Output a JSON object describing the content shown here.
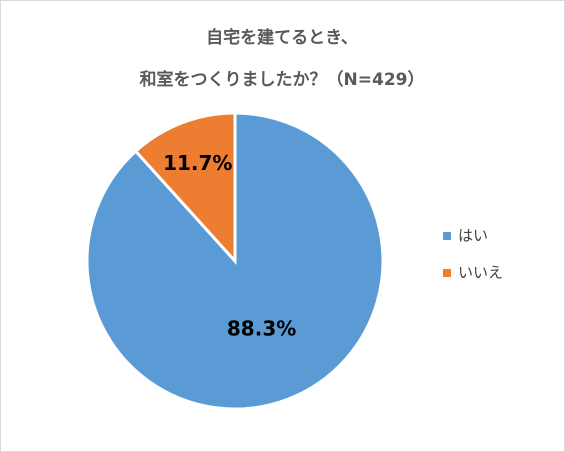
{
  "chart_data": {
    "type": "pie",
    "title": [
      "自宅を建てるとき、",
      "和室をつくりましたか？（N=429）"
    ],
    "categories": [
      "はい",
      "いいえ"
    ],
    "values": [
      88.3,
      11.7
    ],
    "value_labels": [
      "88.3%",
      "11.7%"
    ],
    "colors": [
      "#5b9bd5",
      "#ed7d31"
    ],
    "legend": "right"
  }
}
